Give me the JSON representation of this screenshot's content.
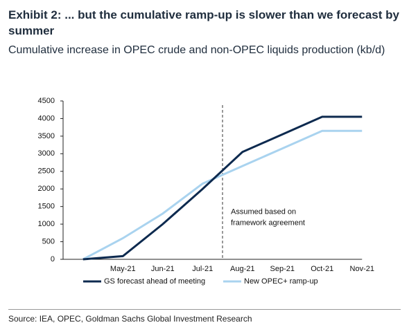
{
  "chart_data": {
    "type": "line",
    "title": "Exhibit 2: ... but the cumulative ramp-up is slower than we forecast by summer",
    "subtitle": "Cumulative increase in OPEC crude and non-OPEC liquids production (kb/d)",
    "categories": [
      null,
      "May-21",
      "Jun-21",
      "Jul-21",
      "Aug-21",
      "Sep-21",
      "Oct-21",
      "Nov-21"
    ],
    "series": [
      {
        "name": "GS forecast ahead of meeting",
        "color": "#0d2a4f",
        "values": [
          0,
          90,
          1000,
          2000,
          3050,
          3550,
          4050,
          4050
        ]
      },
      {
        "name": "New OPEC+ ramp-up",
        "color": "#a9d3ef",
        "values": [
          0,
          600,
          1300,
          2150,
          2650,
          3150,
          3650,
          3650
        ]
      }
    ],
    "ylim": [
      0,
      4500
    ],
    "yticks": [
      0,
      500,
      1000,
      1500,
      2000,
      2500,
      3000,
      3500,
      4000,
      4500
    ],
    "annotation": "Assumed based on framework agreement",
    "source": "Source: IEA, OPEC, Goldman Sachs Global Investment Research",
    "legend": "bottom"
  }
}
